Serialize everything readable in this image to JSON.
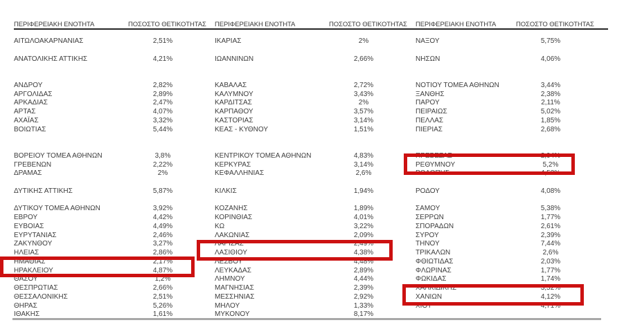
{
  "table": {
    "region_header": "ΠΕΡΙΦΕΡΕΙΑΚΗ ΕΝΟΤΗΤΑ",
    "positivity_header": "ΠΟΣΟΣΤΟ ΘΕΤΙΚΟΤΗΤΑΣ",
    "columns": [
      {
        "rows": [
          {
            "region": "ΑΙΤΩΛΟΑΚΑΡΝΑΝΙΑΣ",
            "value": "2,51%"
          },
          {
            "spacer": true
          },
          {
            "region": "ΑΝΑΤΟΛΙΚΗΣ ΑΤΤΙΚΗΣ",
            "value": "4,21%"
          },
          {
            "spacer": true
          },
          {
            "spacer": true
          },
          {
            "region": "ΑΝΔΡΟΥ",
            "value": "2,82%"
          },
          {
            "region": "ΑΡΓΟΛΙΔΑΣ",
            "value": "2,89%"
          },
          {
            "region": "ΑΡΚΑΔΙΑΣ",
            "value": "2,47%"
          },
          {
            "region": "ΑΡΤΑΣ",
            "value": "4,07%"
          },
          {
            "region": "ΑΧΑΪΑΣ",
            "value": "3,32%"
          },
          {
            "region": "ΒΟΙΩΤΙΑΣ",
            "value": "5,44%"
          },
          {
            "spacer": true
          },
          {
            "spacer": true
          },
          {
            "region": "ΒΟΡΕΙΟΥ ΤΟΜΕΑ ΑΘΗΝΩΝ",
            "value": "3,8%"
          },
          {
            "region": "ΓΡΕΒΕΝΩΝ",
            "value": "2,22%"
          },
          {
            "region": "ΔΡΑΜΑΣ",
            "value": "2%"
          },
          {
            "spacer": true
          },
          {
            "region": "ΔΥΤΙΚΗΣ ΑΤΤΙΚΗΣ",
            "value": "5,87%"
          },
          {
            "spacer": true
          },
          {
            "region": "ΔΥΤΙΚΟΥ ΤΟΜΕΑ ΑΘΗΝΩΝ",
            "value": "3,92%"
          },
          {
            "region": "ΕΒΡΟΥ",
            "value": "4,42%"
          },
          {
            "region": "ΕΥΒΟΙΑΣ",
            "value": "4,49%"
          },
          {
            "region": "ΕΥΡΥΤΑΝΙΑΣ",
            "value": "2,46%"
          },
          {
            "region": "ΖΑΚΥΝΘΟΥ",
            "value": "3,27%"
          },
          {
            "region": "ΗΛΕΙΑΣ",
            "value": "2,86%"
          },
          {
            "region": "ΗΜΑΘΙΑΣ",
            "value": "2,17%"
          },
          {
            "region": "ΗΡΑΚΛΕΙΟΥ",
            "value": "4,87%"
          },
          {
            "region": "ΘΑΣΟΥ",
            "value": "1,2%"
          },
          {
            "region": "ΘΕΣΠΡΩΤΙΑΣ",
            "value": "2,66%"
          },
          {
            "region": "ΘΕΣΣΑΛΟΝΙΚΗΣ",
            "value": "2,51%"
          },
          {
            "region": "ΘΗΡΑΣ",
            "value": "5,26%"
          },
          {
            "region": "ΙΘΑΚΗΣ",
            "value": "1,61%"
          }
        ]
      },
      {
        "rows": [
          {
            "region": "ΙΚΑΡΙΑΣ",
            "value": "2%"
          },
          {
            "spacer": true
          },
          {
            "region": "ΙΩΑΝΝΙΝΩΝ",
            "value": "2,66%"
          },
          {
            "spacer": true
          },
          {
            "spacer": true
          },
          {
            "region": "ΚΑΒΑΛΑΣ",
            "value": "2,72%"
          },
          {
            "region": "ΚΑΛΥΜΝΟΥ",
            "value": "3,43%"
          },
          {
            "region": "ΚΑΡΔΙΤΣΑΣ",
            "value": "2%"
          },
          {
            "region": "ΚΑΡΠΑΘΟΥ",
            "value": "3,57%"
          },
          {
            "region": "ΚΑΣΤΟΡΙΑΣ",
            "value": "3,14%"
          },
          {
            "region": "ΚΕΑΣ - ΚΥΘΝΟΥ",
            "value": "1,51%"
          },
          {
            "spacer": true
          },
          {
            "spacer": true
          },
          {
            "region": "ΚΕΝΤΡΙΚΟΥ ΤΟΜΕΑ ΑΘΗΝΩΝ",
            "value": "4,83%"
          },
          {
            "region": "ΚΕΡΚΥΡΑΣ",
            "value": "3,14%"
          },
          {
            "region": "ΚΕΦΑΛΛΗΝΙΑΣ",
            "value": "2,6%"
          },
          {
            "spacer": true
          },
          {
            "region": "ΚΙΛΚΙΣ",
            "value": "1,94%"
          },
          {
            "spacer": true
          },
          {
            "region": "ΚΟΖΑΝΗΣ",
            "value": "1,89%"
          },
          {
            "region": "ΚΟΡΙΝΘΙΑΣ",
            "value": "4,01%"
          },
          {
            "region": "ΚΩ",
            "value": "3,22%"
          },
          {
            "region": "ΛΑΚΩΝΙΑΣ",
            "value": "2,09%"
          },
          {
            "region": "ΛΑΡΙΣΑΣ",
            "value": "2,49%"
          },
          {
            "region": "ΛΑΣΙΘΙΟΥ",
            "value": "4,38%"
          },
          {
            "region": "ΛΕΣΒΟΥ",
            "value": "4,48%"
          },
          {
            "region": "ΛΕΥΚΑΔΑΣ",
            "value": "2,89%"
          },
          {
            "region": "ΛΗΜΝΟΥ",
            "value": "4,44%"
          },
          {
            "region": "ΜΑΓΝΗΣΙΑΣ",
            "value": "2,39%"
          },
          {
            "region": "ΜΕΣΣΗΝΙΑΣ",
            "value": "2,92%"
          },
          {
            "region": "ΜΗΛΟΥ",
            "value": "1,33%"
          },
          {
            "region": "ΜΥΚΟΝΟΥ",
            "value": "8,17%"
          }
        ]
      },
      {
        "rows": [
          {
            "region": "ΝΑΞΟΥ",
            "value": "5,75%"
          },
          {
            "spacer": true
          },
          {
            "region": "ΝΗΣΩΝ",
            "value": "4,06%"
          },
          {
            "spacer": true
          },
          {
            "spacer": true
          },
          {
            "region": "ΝΟΤΙΟΥ ΤΟΜΕΑ ΑΘΗΝΩΝ",
            "value": "3,44%"
          },
          {
            "region": "ΞΑΝΘΗΣ",
            "value": "2,38%"
          },
          {
            "region": "ΠΑΡΟΥ",
            "value": "2,11%"
          },
          {
            "region": "ΠΕΙΡΑΙΩΣ",
            "value": "5,02%"
          },
          {
            "region": "ΠΕΛΛΑΣ",
            "value": "1,85%"
          },
          {
            "region": "ΠΙΕΡΙΑΣ",
            "value": "2,68%"
          },
          {
            "spacer": true
          },
          {
            "spacer": true
          },
          {
            "region": "ΠΡΕΒΕΖΑΣ",
            "value": "2,94%"
          },
          {
            "region": "ΡΕΘΥΜΝΟΥ",
            "value": "5,2%"
          },
          {
            "region": "ΡΟΔΟΠΗΣ",
            "value": "4,53%"
          },
          {
            "spacer": true
          },
          {
            "region": "ΡΟΔΟΥ",
            "value": "4,08%"
          },
          {
            "spacer": true
          },
          {
            "region": "ΣΑΜΟΥ",
            "value": "5,38%"
          },
          {
            "region": "ΣΕΡΡΩΝ",
            "value": "1,77%"
          },
          {
            "region": "ΣΠΟΡΑΔΩΝ",
            "value": "2,61%"
          },
          {
            "region": "ΣΥΡΟΥ",
            "value": "2,39%"
          },
          {
            "region": "ΤΗΝΟΥ",
            "value": "7,44%"
          },
          {
            "region": "ΤΡΙΚΑΛΩΝ",
            "value": "2,6%"
          },
          {
            "region": "ΦΘΙΩΤΙΔΑΣ",
            "value": "2,03%"
          },
          {
            "region": "ΦΛΩΡΙΝΑΣ",
            "value": "1,77%"
          },
          {
            "region": "ΦΩΚΙΔΑΣ",
            "value": "1,74%"
          },
          {
            "region": "ΧΑΛΚΙΔΙΚΗΣ",
            "value": "3,52%"
          },
          {
            "region": "ΧΑΝΙΩΝ",
            "value": "4,12%"
          },
          {
            "region": "ΧΙΟΥ",
            "value": "4,71%"
          }
        ]
      }
    ]
  },
  "highlighted_regions": [
    "ΗΡΑΚΛΕΙΟΥ",
    "ΛΑΣΙΘΙΟΥ",
    "ΡΕΘΥΜΝΟΥ",
    "ΧΑΝΙΩΝ"
  ],
  "colors": {
    "highlight_red": "#cc1111",
    "text": "#3d3d3d",
    "header_rule": "#262626",
    "bottom_rule": "#a8a8a8"
  }
}
